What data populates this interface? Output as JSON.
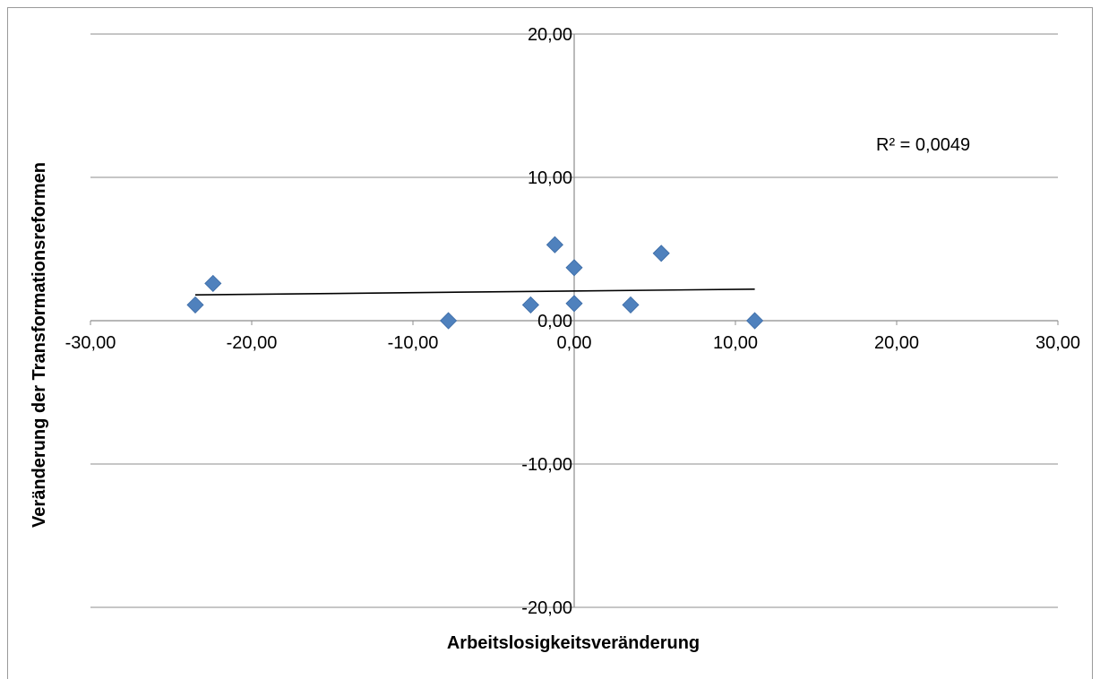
{
  "chart_data": {
    "type": "scatter",
    "xlabel": "Arbeitslosigkeitsveränderung",
    "ylabel": "Veränderung der Transformationsreformen",
    "xlim": [
      -30,
      30
    ],
    "ylim": [
      -20,
      20
    ],
    "x_ticks": [
      "-30,00",
      "-20,00",
      "-10,00",
      "0,00",
      "10,00",
      "20,00",
      "30,00"
    ],
    "y_ticks": [
      "20,00",
      "10,00",
      "0,00",
      "-10,00",
      "-20,00"
    ],
    "grid": "horizontal",
    "points": [
      {
        "x": -23.5,
        "y": 1.1
      },
      {
        "x": -22.4,
        "y": 2.6
      },
      {
        "x": -7.8,
        "y": 0.0
      },
      {
        "x": -2.7,
        "y": 1.1
      },
      {
        "x": -1.2,
        "y": 5.3
      },
      {
        "x": 0.0,
        "y": 3.7
      },
      {
        "x": 0.0,
        "y": 1.2
      },
      {
        "x": 3.5,
        "y": 1.1
      },
      {
        "x": 5.4,
        "y": 4.7
      },
      {
        "x": 11.2,
        "y": 0.0
      }
    ],
    "trendline": {
      "x": [
        -23.5,
        11.2
      ],
      "y": [
        1.8,
        2.2
      ]
    },
    "annotation": "R² = 0,0049",
    "marker_color": "#4f81bd"
  }
}
